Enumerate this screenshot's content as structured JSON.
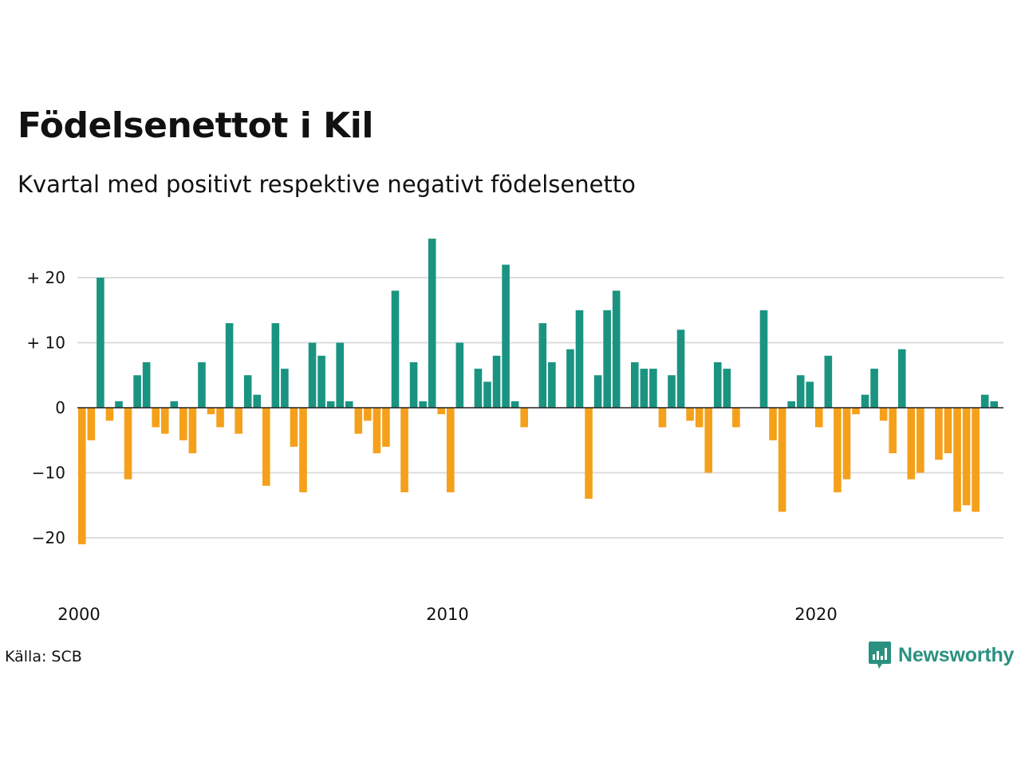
{
  "title": "Födelsenettot i Kil",
  "subtitle": "Kvartal med positivt respektive negativt födelsenetto",
  "source": "Källa: SCB",
  "brand": "Newsworthy",
  "colors": {
    "positive": "#1a9481",
    "negative": "#f5a01a",
    "grid": "#dddddd",
    "zero": "#222222",
    "brand": "#2a9180"
  },
  "chart_data": {
    "type": "bar",
    "title": "Födelsenettot i Kil",
    "subtitle": "Kvartal med positivt respektive negativt födelsenetto",
    "xlabel": "",
    "ylabel": "",
    "ylim": [
      -25,
      28
    ],
    "yticks": [
      20,
      10,
      0,
      -10,
      -20
    ],
    "ytick_labels": [
      "+ 20",
      "+ 10",
      "0",
      "−10",
      "−20"
    ],
    "xticks": [
      2000,
      2010,
      2020
    ],
    "x_start": 2000,
    "periods_per_year": 4,
    "grid": true,
    "series": [
      {
        "values": [
          -21,
          -5,
          20,
          -2,
          1,
          -11,
          5,
          7,
          -3,
          -4,
          1,
          -5,
          -7,
          7,
          -1,
          -3,
          13,
          -4,
          5,
          2,
          -12,
          13,
          6,
          -6,
          -13,
          10,
          8,
          1,
          10,
          1,
          -4,
          -2,
          -7,
          -6,
          18,
          -13,
          7,
          1,
          26,
          -1,
          -13,
          10,
          0,
          6,
          4,
          8,
          22,
          1,
          -3,
          0,
          13,
          7,
          0,
          9,
          15,
          -14,
          5,
          15,
          18,
          0,
          7,
          6,
          6,
          -3,
          5,
          12,
          -2,
          -3,
          -10,
          7,
          6,
          -3,
          0,
          0,
          15,
          -5,
          -16,
          1,
          5,
          4,
          -3,
          8,
          -13,
          -11,
          -1,
          2,
          6,
          -2,
          -7,
          9,
          -11,
          -10,
          0,
          -8,
          -7,
          -16,
          -15,
          -16,
          2,
          1
        ]
      }
    ]
  }
}
